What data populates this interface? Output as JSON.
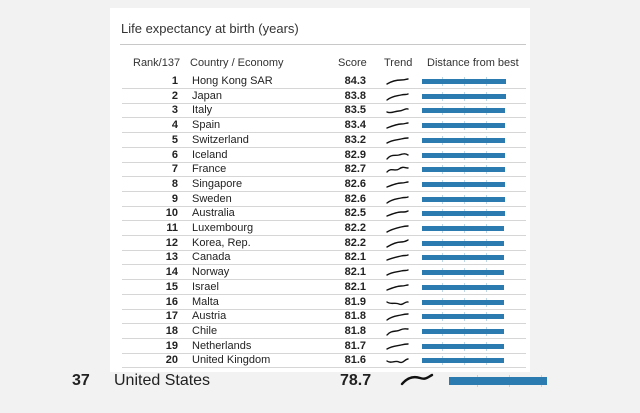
{
  "title": "Life expectancy at birth (years)",
  "headers": {
    "rank": "Rank/137",
    "country": "Country / Economy",
    "score": "Score",
    "trend": "Trend",
    "distance": "Distance from best"
  },
  "bar_color": "#2b7bb0",
  "rows": [
    {
      "rank": "1",
      "country": "Hong Kong SAR",
      "score": "84.3"
    },
    {
      "rank": "2",
      "country": "Japan",
      "score": "83.8"
    },
    {
      "rank": "3",
      "country": "Italy",
      "score": "83.5"
    },
    {
      "rank": "4",
      "country": "Spain",
      "score": "83.4"
    },
    {
      "rank": "5",
      "country": "Switzerland",
      "score": "83.2"
    },
    {
      "rank": "6",
      "country": "Iceland",
      "score": "82.9"
    },
    {
      "rank": "7",
      "country": "France",
      "score": "82.7"
    },
    {
      "rank": "8",
      "country": "Singapore",
      "score": "82.6"
    },
    {
      "rank": "9",
      "country": "Sweden",
      "score": "82.6"
    },
    {
      "rank": "10",
      "country": "Australia",
      "score": "82.5"
    },
    {
      "rank": "11",
      "country": "Luxembourg",
      "score": "82.2"
    },
    {
      "rank": "12",
      "country": "Korea, Rep.",
      "score": "82.2"
    },
    {
      "rank": "13",
      "country": "Canada",
      "score": "82.1"
    },
    {
      "rank": "14",
      "country": "Norway",
      "score": "82.1"
    },
    {
      "rank": "15",
      "country": "Israel",
      "score": "82.1"
    },
    {
      "rank": "16",
      "country": "Malta",
      "score": "81.9"
    },
    {
      "rank": "17",
      "country": "Austria",
      "score": "81.8"
    },
    {
      "rank": "18",
      "country": "Chile",
      "score": "81.8"
    },
    {
      "rank": "19",
      "country": "Netherlands",
      "score": "81.7"
    },
    {
      "rank": "20",
      "country": "United Kingdom",
      "score": "81.6"
    }
  ],
  "highlight": {
    "rank": "37",
    "country": "United States",
    "score": "78.7"
  }
}
